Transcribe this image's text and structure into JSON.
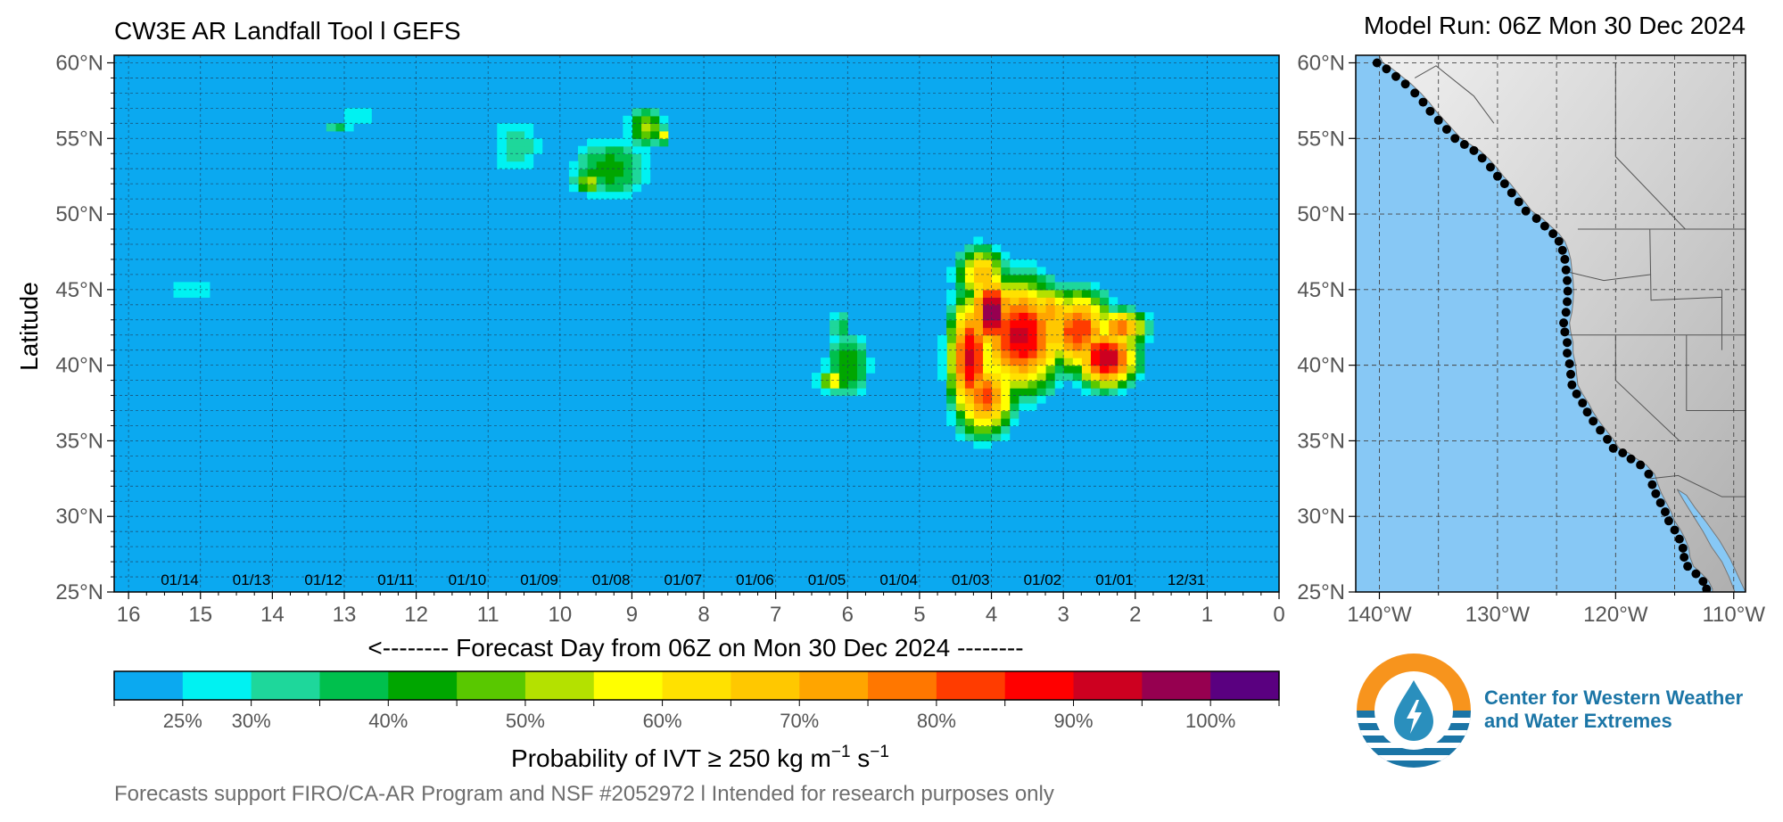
{
  "header": {
    "title": "CW3E AR Landfall Tool l GEFS",
    "model_run": "Model Run: 06Z Mon 30 Dec 2024"
  },
  "footer": {
    "note": "Forecasts support FIRO/CA-AR Program and NSF #2052972 l Intended for research purposes only"
  },
  "logo": {
    "line1": "Center for Western Weather",
    "line2": "and Water Extremes",
    "colors": {
      "orange": "#f7941d",
      "blue": "#1b75a6",
      "teal": "#2a8fbd"
    }
  },
  "colors": {
    "background": "#0ba9f0",
    "scale": [
      "#0ba9f0",
      "#00f2f2",
      "#1ed79b",
      "#00c04d",
      "#00a600",
      "#59c800",
      "#b4e100",
      "#ffff00",
      "#ffe100",
      "#ffc800",
      "#ffa500",
      "#ff7700",
      "#ff3c00",
      "#ff0000",
      "#cd0020",
      "#960050",
      "#5a0080"
    ],
    "map_ocean": "#87c8f5",
    "coast_dots": "#000000"
  },
  "chart_data": [
    {
      "type": "heatmap",
      "title": "CW3E AR Landfall Tool l GEFS",
      "xlabel": "<-------- Forecast Day from 06Z on Mon 30 Dec 2024 --------",
      "ylabel": "Latitude",
      "x_reversed": true,
      "xlim": [
        0,
        16.2
      ],
      "ylim": [
        25,
        60.5
      ],
      "x_ticks": [
        "0",
        "1",
        "2",
        "3",
        "4",
        "5",
        "6",
        "7",
        "8",
        "9",
        "10",
        "11",
        "12",
        "13",
        "14",
        "15",
        "16"
      ],
      "y_ticks": [
        "25°N",
        "30°N",
        "35°N",
        "40°N",
        "45°N",
        "50°N",
        "55°N",
        "60°N"
      ],
      "date_labels": [
        {
          "x": 1.0,
          "label": "12/31"
        },
        {
          "x": 2.0,
          "label": "01/01"
        },
        {
          "x": 3.0,
          "label": "01/02"
        },
        {
          "x": 4.0,
          "label": "01/03"
        },
        {
          "x": 5.0,
          "label": "01/04"
        },
        {
          "x": 6.0,
          "label": "01/05"
        },
        {
          "x": 7.0,
          "label": "01/06"
        },
        {
          "x": 8.0,
          "label": "01/07"
        },
        {
          "x": 9.0,
          "label": "01/08"
        },
        {
          "x": 10.0,
          "label": "01/09"
        },
        {
          "x": 11.0,
          "label": "01/10"
        },
        {
          "x": 12.0,
          "label": "01/11"
        },
        {
          "x": 13.0,
          "label": "01/12"
        },
        {
          "x": 14.0,
          "label": "01/13"
        },
        {
          "x": 15.0,
          "label": "01/14"
        }
      ],
      "grid": true,
      "blobs": [
        {
          "x": 3.6,
          "y": 42.0,
          "sx": 0.5,
          "sy": 3.0,
          "p": 93
        },
        {
          "x": 4.0,
          "y": 43.5,
          "sx": 0.25,
          "sy": 2.2,
          "p": 99
        },
        {
          "x": 4.3,
          "y": 40.5,
          "sx": 0.25,
          "sy": 3.5,
          "p": 92
        },
        {
          "x": 4.1,
          "y": 38.0,
          "sx": 0.35,
          "sy": 2.2,
          "p": 82
        },
        {
          "x": 4.15,
          "y": 46.0,
          "sx": 0.3,
          "sy": 1.6,
          "p": 70
        },
        {
          "x": 2.8,
          "y": 42.3,
          "sx": 0.4,
          "sy": 2.2,
          "p": 85
        },
        {
          "x": 2.4,
          "y": 40.5,
          "sx": 0.35,
          "sy": 1.6,
          "p": 96
        },
        {
          "x": 2.5,
          "y": 41.0,
          "sx": 0.12,
          "sy": 0.6,
          "p": 102
        },
        {
          "x": 2.2,
          "y": 42.5,
          "sx": 0.3,
          "sy": 1.0,
          "p": 80
        },
        {
          "x": 3.2,
          "y": 43.5,
          "sx": 0.3,
          "sy": 1.5,
          "p": 75
        },
        {
          "x": 6.0,
          "y": 40.0,
          "sx": 0.3,
          "sy": 2.0,
          "p": 46
        },
        {
          "x": 6.2,
          "y": 39.0,
          "sx": 0.2,
          "sy": 0.7,
          "p": 60
        },
        {
          "x": 6.1,
          "y": 42.5,
          "sx": 0.15,
          "sy": 1.2,
          "p": 38
        },
        {
          "x": 9.3,
          "y": 53.0,
          "sx": 0.5,
          "sy": 2.0,
          "p": 44
        },
        {
          "x": 9.6,
          "y": 52.2,
          "sx": 0.2,
          "sy": 0.8,
          "p": 55
        },
        {
          "x": 8.8,
          "y": 55.7,
          "sx": 0.25,
          "sy": 1.2,
          "p": 52
        },
        {
          "x": 8.6,
          "y": 55.2,
          "sx": 0.1,
          "sy": 0.5,
          "p": 60
        },
        {
          "x": 10.6,
          "y": 54.5,
          "sx": 0.4,
          "sy": 2.2,
          "p": 34
        },
        {
          "x": 12.8,
          "y": 56.5,
          "sx": 0.4,
          "sy": 0.6,
          "p": 32
        },
        {
          "x": 13.1,
          "y": 55.8,
          "sx": 0.2,
          "sy": 0.4,
          "p": 36
        },
        {
          "x": 15.1,
          "y": 45.0,
          "sx": 0.6,
          "sy": 1.6,
          "p": 27
        },
        {
          "x": 10.7,
          "y": 47.0,
          "sx": 0.1,
          "sy": 0.6,
          "p": 26
        }
      ],
      "colorbar": {
        "label_prefix": "Probability of IVT",
        "label_symbol": "≥",
        "label_value": "250 kg m",
        "label_exp1": "−1",
        "label_s": " s",
        "label_exp2": "−1",
        "bins": [
          20,
          25,
          30,
          35,
          40,
          45,
          50,
          55,
          60,
          65,
          70,
          75,
          80,
          85,
          90,
          95,
          100,
          105
        ],
        "tick_values": [
          25,
          30,
          40,
          50,
          60,
          70,
          80,
          90,
          100
        ],
        "tick_labels": [
          "25%",
          "30%",
          "40%",
          "50%",
          "60%",
          "70%",
          "80%",
          "90%",
          "100%"
        ]
      }
    },
    {
      "type": "map",
      "xlim": [
        -142,
        -109
      ],
      "ylim": [
        25,
        60.5
      ],
      "x_ticks": [
        "140°W",
        "130°W",
        "120°W",
        "110°W"
      ],
      "y_ticks": [
        "25°N",
        "30°N",
        "35°N",
        "40°N",
        "45°N",
        "50°N",
        "55°N",
        "60°N"
      ],
      "coast_points": [
        [
          -140.2,
          60
        ],
        [
          -139.4,
          59.6
        ],
        [
          -138.6,
          59.1
        ],
        [
          -137.8,
          58.6
        ],
        [
          -137,
          58
        ],
        [
          -136.3,
          57.4
        ],
        [
          -135.7,
          56.8
        ],
        [
          -135,
          56.2
        ],
        [
          -134.3,
          55.6
        ],
        [
          -133.6,
          55
        ],
        [
          -132.8,
          54.6
        ],
        [
          -132,
          54.2
        ],
        [
          -131.3,
          53.7
        ],
        [
          -130.6,
          53.1
        ],
        [
          -130,
          52.5
        ],
        [
          -129.4,
          52
        ],
        [
          -128.8,
          51.4
        ],
        [
          -128.2,
          50.8
        ],
        [
          -127.6,
          50.2
        ],
        [
          -126.7,
          49.7
        ],
        [
          -126,
          49.2
        ],
        [
          -125.3,
          48.7
        ],
        [
          -124.8,
          48.2
        ],
        [
          -124.5,
          47.6
        ],
        [
          -124.3,
          47
        ],
        [
          -124.2,
          46.3
        ],
        [
          -124.1,
          45.6
        ],
        [
          -124.05,
          44.9
        ],
        [
          -124.1,
          44.2
        ],
        [
          -124.2,
          43.5
        ],
        [
          -124.4,
          42.8
        ],
        [
          -124.3,
          42.2
        ],
        [
          -124.1,
          41.5
        ],
        [
          -124.1,
          40.8
        ],
        [
          -123.9,
          40.1
        ],
        [
          -123.8,
          39.4
        ],
        [
          -123.7,
          38.7
        ],
        [
          -123.3,
          38.1
        ],
        [
          -122.8,
          37.5
        ],
        [
          -122.4,
          36.9
        ],
        [
          -121.9,
          36.3
        ],
        [
          -121.3,
          35.7
        ],
        [
          -120.7,
          35.1
        ],
        [
          -120.2,
          34.5
        ],
        [
          -119.4,
          34.2
        ],
        [
          -118.7,
          33.8
        ],
        [
          -117.9,
          33.4
        ],
        [
          -117.2,
          32.8
        ],
        [
          -116.9,
          32.1
        ],
        [
          -116.6,
          31.5
        ],
        [
          -116.2,
          30.9
        ],
        [
          -115.8,
          30.3
        ],
        [
          -115.5,
          29.7
        ],
        [
          -115,
          29.1
        ],
        [
          -114.6,
          28.5
        ],
        [
          -114.3,
          27.9
        ],
        [
          -114.2,
          27.3
        ],
        [
          -113.9,
          26.7
        ],
        [
          -113.2,
          26.2
        ],
        [
          -112.6,
          25.7
        ],
        [
          -112.3,
          25.2
        ],
        [
          -112.3,
          24.9
        ]
      ]
    }
  ]
}
